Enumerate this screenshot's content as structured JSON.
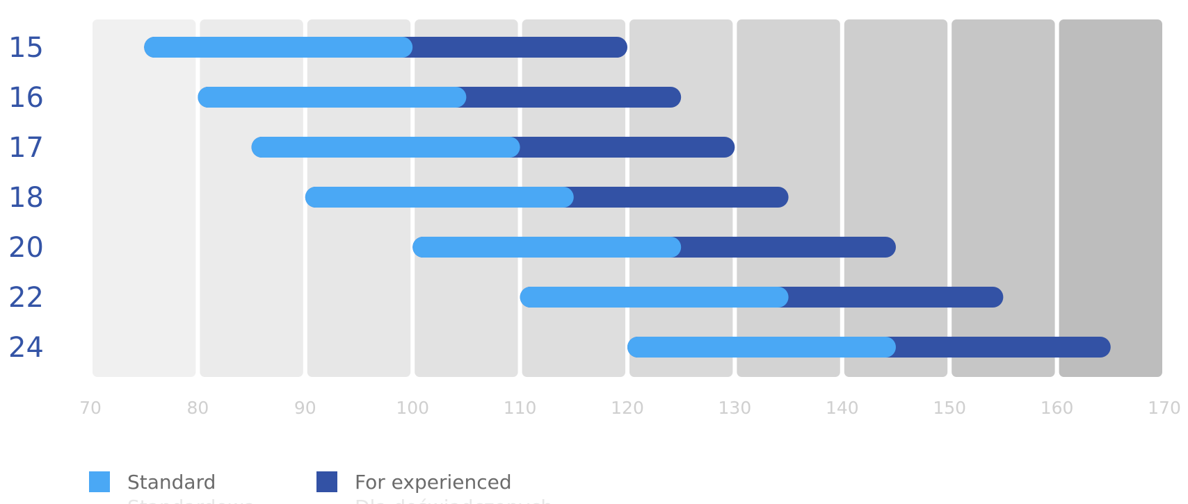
{
  "chart_data": {
    "type": "bar",
    "orientation": "horizontal",
    "stacked": true,
    "categories": [
      "15",
      "16",
      "17",
      "18",
      "20",
      "22",
      "24"
    ],
    "series": [
      {
        "name": "Standard",
        "color": "#4aa8f5",
        "ranges": [
          [
            75,
            100
          ],
          [
            80,
            105
          ],
          [
            85,
            110
          ],
          [
            90,
            115
          ],
          [
            100,
            125
          ],
          [
            110,
            135
          ],
          [
            120,
            145
          ]
        ]
      },
      {
        "name": "For experienced",
        "color": "#3352a5",
        "ranges": [
          [
            100,
            120
          ],
          [
            105,
            125
          ],
          [
            110,
            130
          ],
          [
            115,
            135
          ],
          [
            125,
            145
          ],
          [
            135,
            155
          ],
          [
            145,
            165
          ]
        ]
      }
    ],
    "x_ticks": [
      "70",
      "80",
      "90",
      "100",
      "110",
      "120",
      "130",
      "140",
      "150",
      "160",
      "170"
    ],
    "xlim": [
      70,
      170
    ],
    "band_colors": [
      "#f0f0f0",
      "#ebebeb",
      "#e7e7e7",
      "#e2e2e2",
      "#dedede",
      "#d9d9d9",
      "#d3d3d3",
      "#cecece",
      "#c6c6c6",
      "#bdbdbd"
    ],
    "legend": [
      {
        "label": "Standard",
        "sub_label": "Standardowa",
        "color": "#4aa8f5"
      },
      {
        "label": "For experienced",
        "sub_label": "Dla doświadczonych",
        "color": "#3352a5"
      }
    ],
    "legend_position": "bottom-left",
    "title": "",
    "xlabel": "",
    "ylabel": ""
  }
}
